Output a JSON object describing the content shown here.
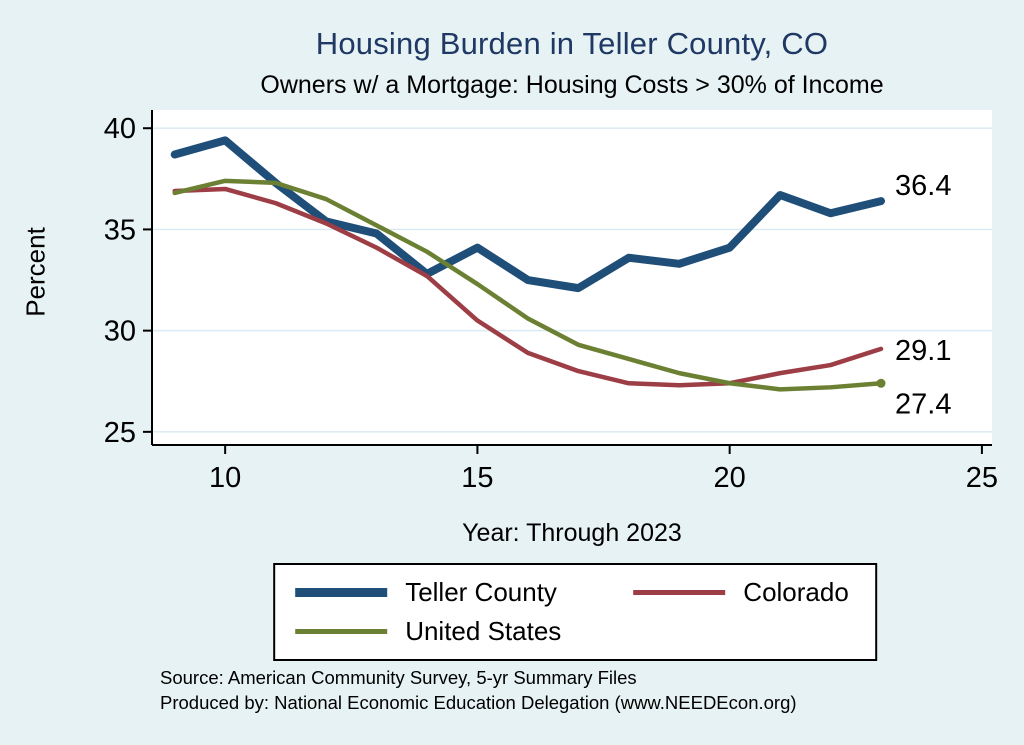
{
  "chart_data": {
    "type": "line",
    "title": "Housing Burden in Teller County, CO",
    "subtitle": "Owners w/ a Mortgage: Housing Costs > 30% of Income",
    "xlabel": "Year: Through 2023",
    "ylabel": "Percent",
    "x": [
      9,
      10,
      11,
      12,
      13,
      14,
      15,
      16,
      17,
      18,
      19,
      20,
      21,
      22,
      23
    ],
    "series": [
      {
        "name": "Teller County",
        "color": "#1f4e79",
        "width": 8,
        "end_label": "36.4",
        "end_label_dy": -6,
        "values": [
          38.7,
          39.4,
          37.3,
          35.4,
          34.8,
          32.8,
          34.1,
          32.5,
          32.1,
          33.6,
          33.3,
          34.1,
          36.7,
          35.8,
          36.4
        ]
      },
      {
        "name": "Colorado",
        "color": "#9d3d45",
        "width": 4.5,
        "end_label": "29.1",
        "end_label_dy": 11,
        "values": [
          36.9,
          37.0,
          36.3,
          35.3,
          34.1,
          32.7,
          30.5,
          28.9,
          28.0,
          27.4,
          27.3,
          27.4,
          27.9,
          28.3,
          29.1
        ]
      },
      {
        "name": "United States",
        "color": "#6c8033",
        "width": 4.5,
        "end_label": "27.4",
        "end_label_dy": 30,
        "marker_last": true,
        "values": [
          36.8,
          37.4,
          37.3,
          36.5,
          35.2,
          33.9,
          32.3,
          30.6,
          29.3,
          28.6,
          27.9,
          27.4,
          27.1,
          27.2,
          27.4
        ]
      }
    ],
    "x_ticks": [
      10,
      15,
      20,
      25
    ],
    "y_ticks": [
      25,
      30,
      35,
      40
    ],
    "xlim": [
      8.55,
      25.2
    ],
    "ylim": [
      24.35,
      40.9
    ],
    "grid": true,
    "legend_position": "bottom",
    "colors": {
      "grid": "#d9eaf2",
      "axis": "#000000",
      "background": "#e6f2f3",
      "plot_bg": "#ffffff",
      "title": "#1f3864"
    }
  },
  "legend": {
    "items": [
      {
        "label": "Teller County",
        "color": "#1f4e79",
        "thick": 9
      },
      {
        "label": "Colorado",
        "color": "#9d3d45",
        "thick": 5
      },
      {
        "label": "United States",
        "color": "#6c8033",
        "thick": 5
      }
    ]
  },
  "footer": {
    "line1": "Source: American Community Survey, 5-yr Summary Files",
    "line2": "Produced by: National Economic Education Delegation (www.NEEDEcon.org)"
  }
}
